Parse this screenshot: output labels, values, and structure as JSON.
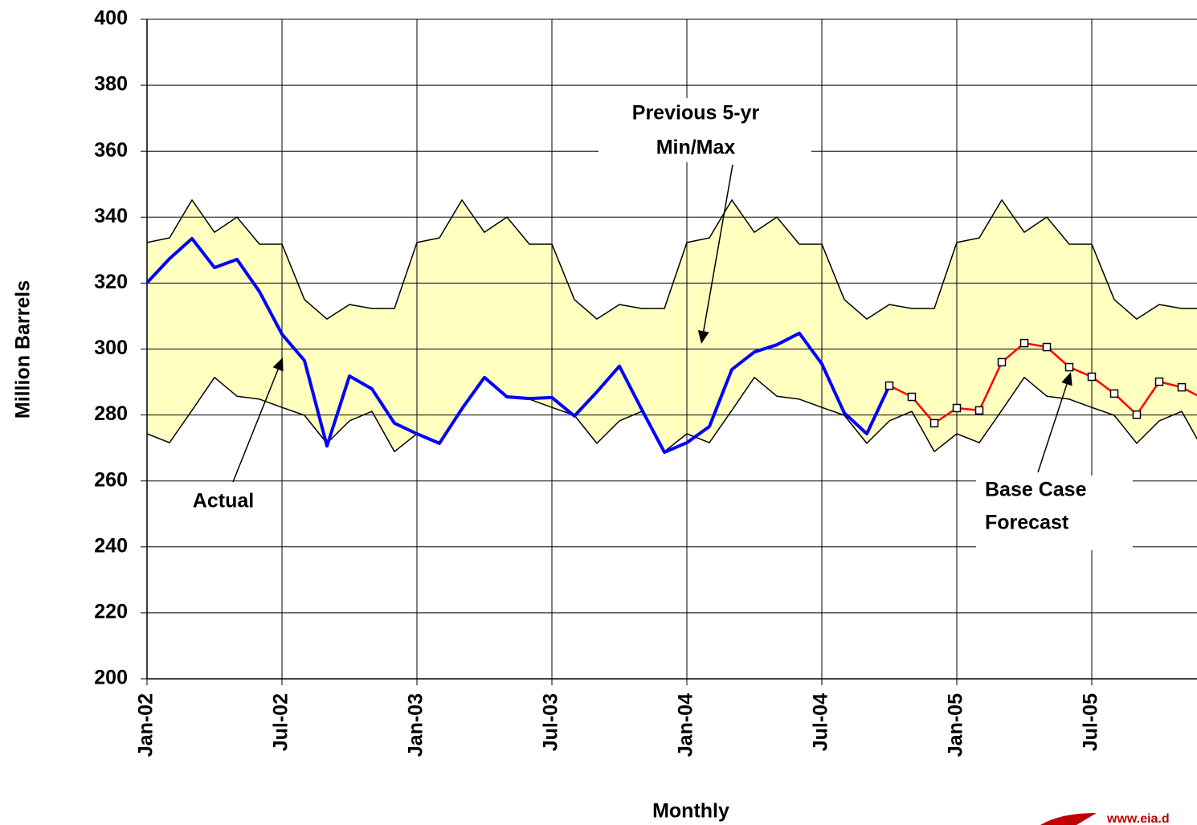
{
  "chart_data": {
    "type": "line",
    "y_label": "Million Barrels",
    "x_label": "Monthly",
    "categories": [
      "Jan-02",
      null,
      null,
      null,
      null,
      null,
      "Jul-02",
      null,
      null,
      null,
      null,
      null,
      "Jan-03",
      null,
      null,
      null,
      null,
      null,
      "Jul-03",
      null,
      null,
      null,
      null,
      null,
      "Jan-04",
      null,
      null,
      null,
      null,
      null,
      "Jul-04",
      null,
      null,
      null,
      null,
      null,
      "Jan-05",
      null,
      null,
      null,
      null,
      null,
      "Jul-05",
      null,
      null,
      null,
      null,
      null
    ],
    "ylim": [
      200,
      400
    ],
    "yticks": [
      200,
      220,
      240,
      260,
      280,
      300,
      320,
      340,
      360,
      380,
      400
    ],
    "grid": true,
    "band": {
      "color": "#ffffc0",
      "upper": [
        332.3,
        333.7,
        345.2,
        335.4,
        340,
        331.8,
        331.8,
        315,
        309.1,
        313.5,
        312.3,
        312.3,
        332.3,
        333.7,
        345.2,
        335.4,
        340,
        331.8,
        331.8,
        315,
        309.1,
        313.5,
        312.3,
        312.3,
        332.3,
        333.7,
        345.2,
        335.4,
        340,
        331.8,
        331.8,
        315,
        309.1,
        313.5,
        312.3,
        312.3,
        332.3,
        333.7,
        345.2,
        335.4,
        340,
        331.8,
        331.8,
        315,
        309.1,
        313.5,
        312.3,
        312.3
      ],
      "lower": [
        274.3,
        271.6,
        281.4,
        291.4,
        285.7,
        284.8,
        282.3,
        279.9,
        271.4,
        278.2,
        281.1,
        268.9,
        274.3,
        271.6,
        281.4,
        291.4,
        285.7,
        284.8,
        282.3,
        279.9,
        271.4,
        278.2,
        281.1,
        268.9,
        274.3,
        271.6,
        281.4,
        291.4,
        285.7,
        284.8,
        282.3,
        279.9,
        271.4,
        278.2,
        281.1,
        268.9,
        274.3,
        271.6,
        281.4,
        291.4,
        285.7,
        284.8,
        282.3,
        279.9,
        271.4,
        278.2,
        281.1,
        268.9
      ]
    },
    "series": [
      {
        "color": "#0000ff",
        "values": [
          320.1,
          327.4,
          333.5,
          324.7,
          327.2,
          317.4,
          304.5,
          296.5,
          270.6,
          291.8,
          287.9,
          277.5,
          274.3,
          271.4,
          281.9,
          291.4,
          285.5,
          285.0,
          285.3,
          279.7,
          287.0,
          294.8,
          281.6,
          268.7,
          271.6,
          276.5,
          293.8,
          299.1,
          301.3,
          304.8,
          295.5,
          280.6,
          274.3,
          288.9,
          null,
          null,
          null,
          null,
          null,
          null,
          null,
          null,
          null,
          null,
          null,
          null,
          null,
          null
        ]
      },
      {
        "color": "#ff0000",
        "markers": true,
        "values": [
          null,
          null,
          null,
          null,
          null,
          null,
          null,
          null,
          null,
          null,
          null,
          null,
          null,
          null,
          null,
          null,
          null,
          null,
          null,
          null,
          null,
          null,
          null,
          null,
          null,
          null,
          null,
          null,
          null,
          null,
          null,
          null,
          null,
          288.9,
          285.5,
          277.5,
          282.1,
          281.4,
          296.0,
          301.8,
          300.6,
          294.5,
          291.6,
          286.5,
          280.1,
          290.1,
          288.4,
          284.8
        ]
      }
    ],
    "annotations": [
      {
        "lines": [
          "Previous 5-yr",
          "Min/Max"
        ]
      },
      {
        "lines": [
          "Actual"
        ]
      },
      {
        "lines": [
          "Base Case",
          "Forecast"
        ]
      }
    ],
    "watermark": "www.eia.d"
  }
}
